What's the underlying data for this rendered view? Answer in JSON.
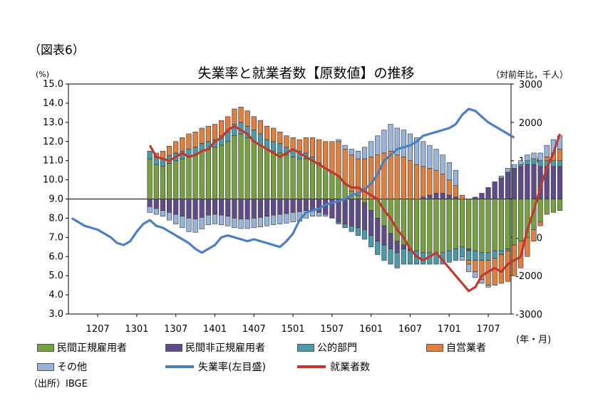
{
  "figure_label": "（図表6）",
  "source": "（出所）IBGE",
  "colors": {
    "private_regular": "#77a043",
    "private_irregular": "#5f4b8b",
    "public": "#4a9aab",
    "self_employed": "#e07f3e",
    "other": "#97b4dc",
    "unemployment_line": "#4a7fc1",
    "employment_line": "#c0392b"
  },
  "chart_data": {
    "type": "bar",
    "title": "失業率と就業者数【原数値】の推移",
    "unit_left": "(%)",
    "unit_right": "（対前年比，千人）",
    "xlabel": "(年・月)",
    "y_left": {
      "min": 3.0,
      "max": 15.0,
      "ticks": [
        "3.0",
        "4.0",
        "5.0",
        "6.0",
        "7.0",
        "8.0",
        "9.0",
        "10.0",
        "11.0",
        "12.0",
        "13.0",
        "14.0",
        "15.0"
      ]
    },
    "y_right": {
      "min": -3000,
      "max": 3000,
      "ticks": [
        "-3000",
        "-2000",
        "-1000",
        "0",
        "1000",
        "2000",
        "3000"
      ]
    },
    "x_tick_labels": [
      "1207",
      "1301",
      "1307",
      "1401",
      "1407",
      "1501",
      "1507",
      "1601",
      "1607",
      "1701",
      "1707"
    ],
    "unemployment_start_period": "1203",
    "unemployment_rate": [
      8.0,
      7.8,
      7.6,
      7.5,
      7.4,
      7.2,
      7.0,
      6.7,
      6.6,
      6.8,
      7.3,
      7.7,
      7.9,
      7.6,
      7.5,
      7.3,
      7.1,
      6.9,
      6.7,
      6.4,
      6.2,
      6.4,
      6.6,
      7.0,
      7.1,
      7.0,
      6.9,
      6.8,
      6.9,
      6.8,
      6.7,
      6.6,
      6.5,
      6.8,
      7.2,
      7.9,
      8.3,
      8.4,
      8.5,
      8.7,
      8.8,
      8.9,
      9.0,
      9.2,
      9.3,
      9.5,
      9.8,
      10.3,
      11.0,
      11.3,
      11.6,
      11.7,
      11.8,
      12.0,
      12.3,
      12.4,
      12.5,
      12.6,
      12.7,
      12.9,
      13.4,
      13.7,
      13.6,
      13.3,
      13.0,
      12.8,
      12.6,
      12.4,
      12.2
    ],
    "bar_start_period": "1303",
    "series": [
      {
        "key": "private_regular",
        "name": "民間正規雇用者",
        "values": [
          1050,
          900,
          850,
          930,
          1000,
          1050,
          1100,
          1150,
          1250,
          1300,
          1350,
          1400,
          1500,
          1650,
          1700,
          1600,
          1500,
          1400,
          1300,
          1250,
          1200,
          1150,
          1100,
          1050,
          1050,
          1000,
          900,
          800,
          700,
          600,
          400,
          200,
          100,
          -100,
          -300,
          -500,
          -700,
          -900,
          -1100,
          -1200,
          -1300,
          -1350,
          -1400,
          -1400,
          -1400,
          -1400,
          -1350,
          -1300,
          -1250,
          -1300,
          -1350,
          -1400,
          -1400,
          -1350,
          -1350,
          -1300,
          -1200,
          -1100,
          -1000,
          -800,
          -600,
          -400,
          -350,
          -300
        ]
      },
      {
        "key": "private_irregular",
        "name": "民間非正規雇用者",
        "values": [
          -200,
          -250,
          -300,
          -350,
          -400,
          -450,
          -500,
          -520,
          -480,
          -420,
          -400,
          -420,
          -450,
          -500,
          -520,
          -520,
          -500,
          -480,
          -450,
          -420,
          -400,
          -380,
          -350,
          -330,
          -300,
          -300,
          -350,
          -400,
          -500,
          -600,
          -650,
          -700,
          -750,
          -700,
          -650,
          -600,
          -500,
          -400,
          -300,
          -100,
          -50,
          0,
          50,
          100,
          150,
          150,
          100,
          50,
          0,
          -50,
          50,
          150,
          300,
          450,
          550,
          700,
          800,
          850,
          900,
          900,
          850,
          850,
          850,
          850
        ]
      },
      {
        "key": "public",
        "name": "公的部門",
        "values": [
          200,
          200,
          200,
          200,
          200,
          200,
          200,
          200,
          200,
          200,
          200,
          250,
          250,
          300,
          300,
          300,
          300,
          300,
          250,
          250,
          250,
          200,
          200,
          200,
          150,
          100,
          50,
          0,
          0,
          -50,
          -100,
          -150,
          -200,
          -250,
          -300,
          -350,
          -400,
          -400,
          -400,
          -400,
          -350,
          -350,
          -300,
          -300,
          -300,
          -300,
          -300,
          -300,
          -250,
          -250,
          -250,
          -200,
          -200,
          -200,
          -100,
          -50,
          0,
          50,
          100,
          150,
          150,
          150,
          150,
          150
        ]
      },
      {
        "key": "self_employed",
        "name": "自営業者",
        "values": [
          0,
          100,
          200,
          250,
          300,
          350,
          400,
          400,
          400,
          400,
          400,
          400,
          400,
          400,
          400,
          400,
          350,
          350,
          350,
          350,
          300,
          300,
          300,
          300,
          400,
          500,
          600,
          700,
          800,
          900,
          900,
          950,
          950,
          1050,
          1100,
          1150,
          1200,
          1250,
          1150,
          1100,
          1000,
          900,
          800,
          700,
          600,
          500,
          400,
          300,
          100,
          -100,
          -300,
          -500,
          -650,
          -700,
          -750,
          -800,
          -800,
          -700,
          -500,
          -300,
          -100,
          100,
          200,
          300
        ]
      },
      {
        "key": "other",
        "name": "その他",
        "values": [
          -150,
          -150,
          -150,
          -200,
          -250,
          -300,
          -350,
          -350,
          -300,
          -250,
          -250,
          -250,
          -250,
          -250,
          -250,
          -250,
          -250,
          -250,
          -250,
          -250,
          -250,
          -250,
          -250,
          -250,
          -200,
          -150,
          -100,
          -50,
          0,
          50,
          100,
          150,
          200,
          300,
          400,
          500,
          600,
          700,
          700,
          700,
          700,
          700,
          650,
          600,
          550,
          500,
          450,
          400,
          -100,
          -200,
          -150,
          -100,
          -50,
          0,
          50,
          100,
          100,
          100,
          150,
          150,
          200,
          300,
          350,
          350
        ]
      },
      {
        "key": "employment",
        "name": "就業者数",
        "values": [
          1400,
          1100,
          1050,
          1000,
          1100,
          1200,
          1100,
          1150,
          1250,
          1300,
          1500,
          1600,
          1800,
          1900,
          1800,
          1700,
          1500,
          1400,
          1300,
          1200,
          1100,
          1200,
          1300,
          1200,
          1100,
          1000,
          900,
          800,
          700,
          600,
          400,
          300,
          300,
          200,
          100,
          0,
          -300,
          -500,
          -800,
          -1000,
          -1300,
          -1500,
          -1600,
          -1500,
          -1400,
          -1600,
          -1800,
          -2000,
          -2200,
          -2400,
          -2300,
          -2000,
          -1900,
          -1800,
          -1900,
          -1700,
          -1600,
          -1500,
          -800,
          -300,
          300,
          800,
          1200,
          1700
        ]
      },
      {
        "key": "unemployment",
        "name": "失業率(左目盛)"
      }
    ],
    "legend": [
      {
        "label": "民間正規雇用者",
        "kind": "box",
        "color_key": "private_regular"
      },
      {
        "label": "民間非正規雇用者",
        "kind": "box",
        "color_key": "private_irregular"
      },
      {
        "label": "公的部門",
        "kind": "box",
        "color_key": "public"
      },
      {
        "label": "自営業者",
        "kind": "box",
        "color_key": "self_employed"
      },
      {
        "label": "その他",
        "kind": "box",
        "color_key": "other"
      },
      {
        "label": "失業率(左目盛)",
        "kind": "line",
        "color_key": "unemployment_line"
      },
      {
        "label": "就業者数",
        "kind": "line",
        "color_key": "employment_line"
      }
    ],
    "grid": false,
    "legend_position": "bottom"
  }
}
